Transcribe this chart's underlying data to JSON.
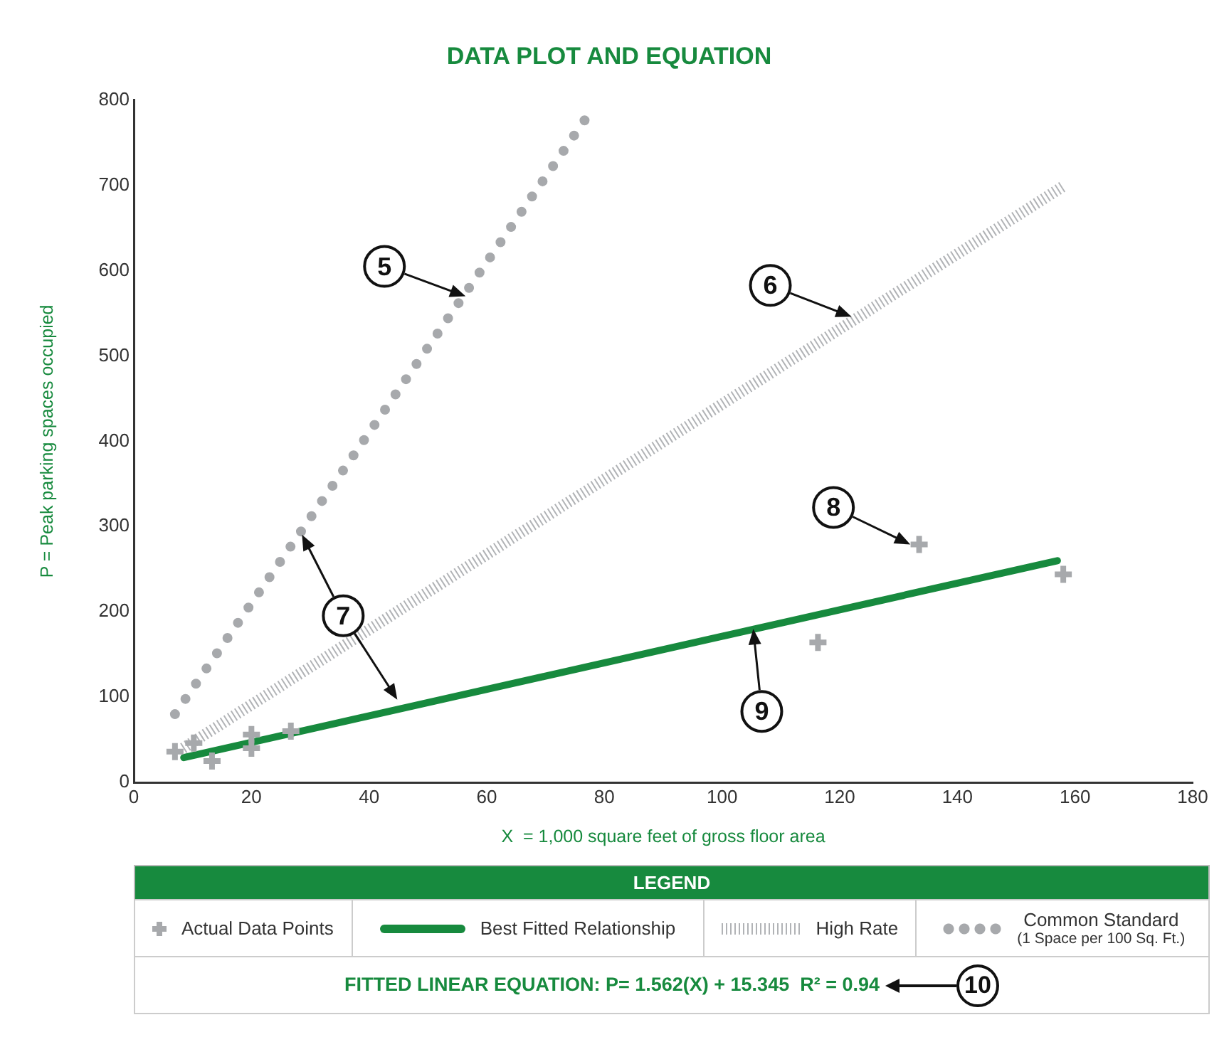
{
  "chart_data": {
    "type": "scatter",
    "title": "DATA PLOT AND EQUATION",
    "xlabel": "X  = 1,000 square feet of gross floor area",
    "ylabel": "P = Peak parking spaces occupied",
    "legend_title": "LEGEND",
    "legend": "bottom",
    "grid": false,
    "xlim": [
      0,
      180
    ],
    "xticks": [
      0,
      20,
      40,
      60,
      80,
      100,
      120,
      140,
      160,
      180
    ],
    "ylim": [
      0,
      800
    ],
    "yticks": [
      0,
      100,
      200,
      300,
      400,
      500,
      600,
      700,
      800
    ],
    "series": [
      {
        "name": "Actual Data Points",
        "color": "#a7a9ac",
        "marker": "cross",
        "x": [
          7,
          10.2,
          13.3,
          20,
          20,
          26.7,
          116.3,
          133.5,
          158
        ],
        "values": [
          36,
          46,
          25,
          56,
          40,
          60,
          164,
          279,
          244
        ]
      },
      {
        "name": "Best Fitted Relationship",
        "type": "line",
        "color": "#178a3e",
        "marker": "none",
        "x": [
          8.5,
          157
        ],
        "values": [
          29,
          260
        ]
      },
      {
        "name": "High Rate",
        "type": "line",
        "color": "#b1b3b6",
        "marker": "none",
        "line_style": "dashed",
        "x": [
          8.4,
          158
        ],
        "values": [
          40,
          699
        ]
      },
      {
        "name": "Common Standard\n(1 Space per 100 Sq. Ft.)",
        "type": "line",
        "color": "#a7a9ac",
        "marker": "none",
        "line_style": "dotted",
        "x": [
          7,
          77
        ],
        "values": [
          80,
          780
        ]
      }
    ],
    "annotations": [
      {
        "text": "5",
        "x": 56.4,
        "y": 570
      },
      {
        "text": "6",
        "x": 122,
        "y": 546
      },
      {
        "text": "7",
        "x": 44.8,
        "y": 97
      },
      {
        "text": "8",
        "x": 132,
        "y": 279
      },
      {
        "text": "9",
        "x": 105.3,
        "y": 180
      },
      "FITTED LINEAR EQUATION: P= 1.562(X) + 15.345  R² = 0.94",
      "10"
    ]
  }
}
